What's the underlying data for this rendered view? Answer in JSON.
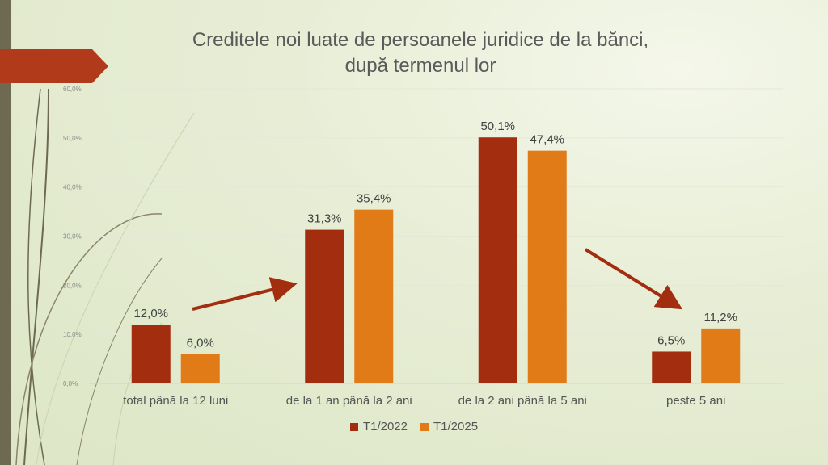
{
  "title_line1": "Creditele noi luate de persoanele juridice de la bănci,",
  "title_line2": "după termenul lor",
  "colors": {
    "series1": "#a32d0f",
    "series2": "#e07b18",
    "arrow": "#a32d0f",
    "accent": "#b13a1a"
  },
  "chart_data": {
    "type": "bar",
    "categories": [
      "total până la 12 luni",
      "de la 1 an până la 2 ani",
      "de la 2 ani până la 5 ani",
      "peste 5 ani"
    ],
    "series": [
      {
        "name": "T1/2022",
        "values": [
          12.0,
          31.3,
          50.1,
          6.5
        ],
        "labels": [
          "12,0%",
          "31,3%",
          "50,1%",
          "6,5%"
        ]
      },
      {
        "name": "T1/2025",
        "values": [
          6.0,
          35.4,
          47.4,
          11.2
        ],
        "labels": [
          "6,0%",
          "35,4%",
          "47,4%",
          "11,2%"
        ]
      }
    ],
    "ylim": [
      0,
      60
    ],
    "yticks": [
      "0,0%",
      "10,0%",
      "20,0%",
      "30,0%",
      "40,0%",
      "50,0%",
      "60,0%"
    ],
    "grid": true,
    "legend_position": "bottom"
  }
}
